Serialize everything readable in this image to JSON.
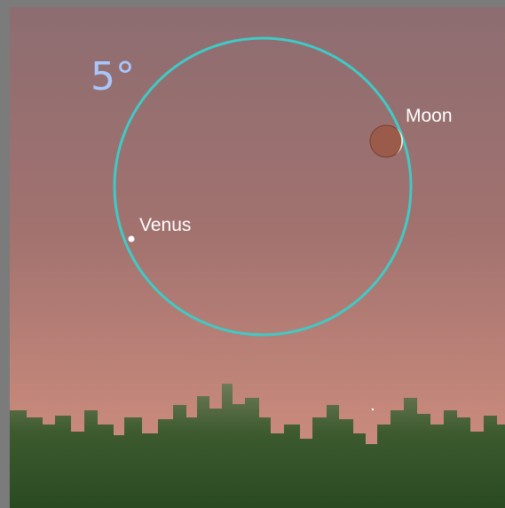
{
  "labels": {
    "fov": "5°",
    "moon": "Moon",
    "venus": "Venus"
  }
}
